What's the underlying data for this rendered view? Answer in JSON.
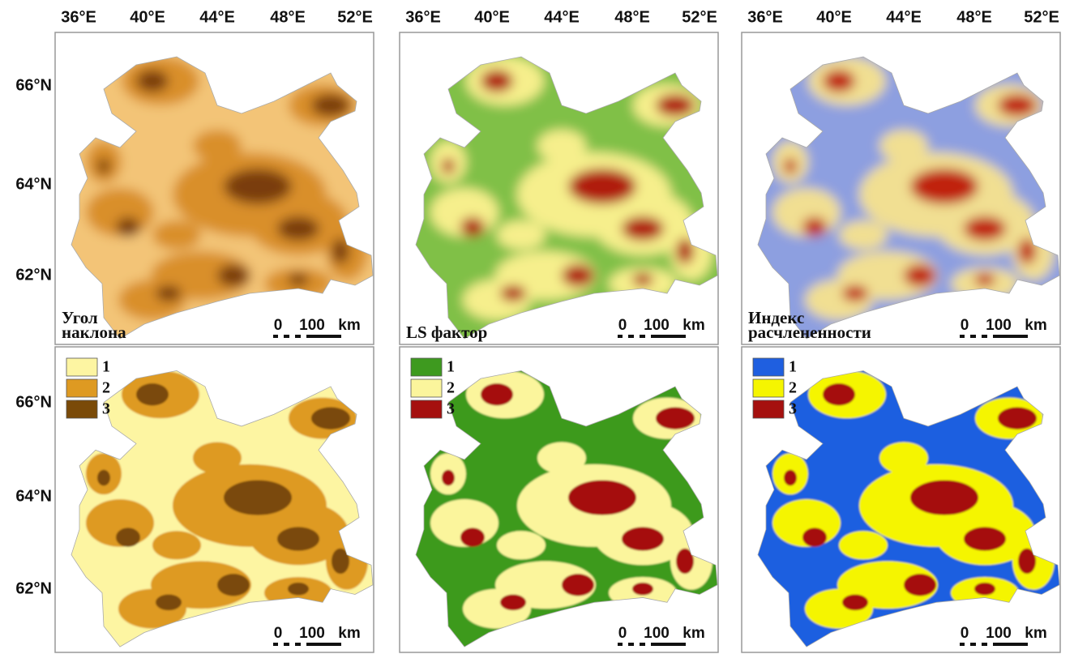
{
  "columns": [
    {
      "longitude_labels": [
        "36°E",
        "40°E",
        "44°E",
        "48°E",
        "52°E"
      ]
    },
    {
      "longitude_labels": [
        "36°E",
        "40°E",
        "44°E",
        "48°E",
        "52°E"
      ]
    },
    {
      "longitude_labels": [
        "36°E",
        "40°E",
        "44°E",
        "48°E",
        "52°E"
      ]
    }
  ],
  "latitude_labels": {
    "top": [
      "66°N",
      "64°N",
      "62°N"
    ],
    "bottom": [
      "66°N",
      "64°N",
      "62°N"
    ]
  },
  "panels": [
    {
      "title": [
        "Угол",
        "наклона"
      ],
      "colors": [
        "#f3c477",
        "#d98f2c",
        "#7a3e08"
      ],
      "scale": {
        "zero": "0",
        "distance": "100",
        "unit": "km"
      }
    },
    {
      "title": [
        "LS фактор"
      ],
      "colors": [
        "#80c046",
        "#f6ef8c",
        "#b01b0c"
      ],
      "scale": {
        "zero": "0",
        "distance": "100",
        "unit": "km"
      }
    },
    {
      "title": [
        "Индекс",
        "расчлененности"
      ],
      "colors": [
        "#8d9fe0",
        "#f1df92",
        "#c0220f"
      ],
      "scale": {
        "zero": "0",
        "distance": "100",
        "unit": "km"
      }
    },
    {
      "legend": [
        {
          "label": "1",
          "color": "#fdf5a2"
        },
        {
          "label": "2",
          "color": "#de9a22"
        },
        {
          "label": "3",
          "color": "#7a4a08"
        }
      ],
      "scale": {
        "zero": "0",
        "distance": "100",
        "unit": "km"
      }
    },
    {
      "legend": [
        {
          "label": "1",
          "color": "#3e9a1f"
        },
        {
          "label": "2",
          "color": "#fbf59c"
        },
        {
          "label": "3",
          "color": "#a5100f"
        }
      ],
      "scale": {
        "zero": "0",
        "distance": "100",
        "unit": "km"
      }
    },
    {
      "legend": [
        {
          "label": "1",
          "color": "#1f5fe0"
        },
        {
          "label": "2",
          "color": "#f5f500"
        },
        {
          "label": "3",
          "color": "#a5100f"
        }
      ],
      "scale": {
        "zero": "0",
        "distance": "100",
        "unit": "km"
      }
    }
  ]
}
